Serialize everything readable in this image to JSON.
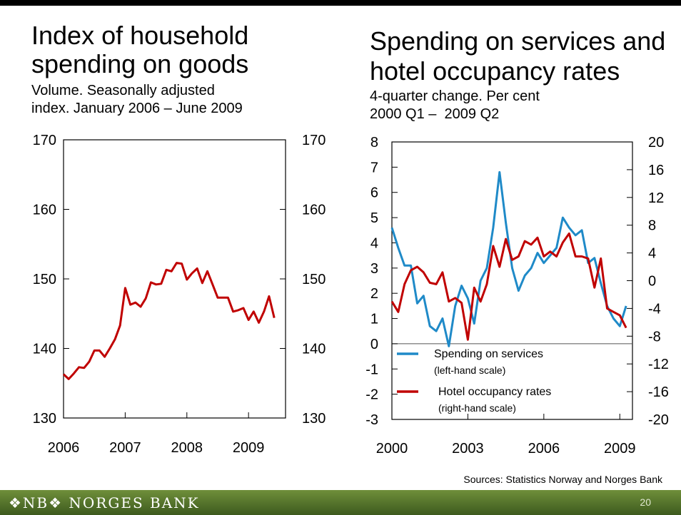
{
  "left": {
    "title_line1": "Index of household",
    "title_line2": "spending on goods",
    "sub_line1": "Volume. Seasonally adjusted",
    "sub_line2": "index. January 2006 – June 2009"
  },
  "right": {
    "title_line1": "Spending on services and",
    "title_line2": "hotel occupancy rates",
    "sub_line1": "4-quarter change. Per cent",
    "sub_line2": "2000 Q1 –  2009 Q2"
  },
  "sources": "Sources: Statistics Norway and Norges Bank",
  "footer": {
    "logo": "❖NB❖ NORGES BANK",
    "page": "20"
  },
  "colors": {
    "red": "#c00000",
    "blue": "#1f8ac8",
    "footer": "#4e6b2a"
  },
  "chart_data": [
    {
      "type": "line",
      "title": "Index of household spending on goods",
      "subtitle": "Volume. Seasonally adjusted index. January 2006 – June 2009",
      "ylim": [
        130,
        170
      ],
      "yticks": [
        130,
        140,
        150,
        160,
        170
      ],
      "xlim": [
        2006,
        2009.6
      ],
      "xticks": [
        "2006",
        "2007",
        "2008",
        "2009"
      ],
      "series": [
        {
          "color": "#c00000",
          "x": [
            2006.0,
            2006.083,
            2006.167,
            2006.25,
            2006.333,
            2006.417,
            2006.5,
            2006.583,
            2006.667,
            2006.75,
            2006.833,
            2006.917,
            2007.0,
            2007.083,
            2007.167,
            2007.25,
            2007.333,
            2007.417,
            2007.5,
            2007.583,
            2007.667,
            2007.75,
            2007.833,
            2007.917,
            2008.0,
            2008.083,
            2008.167,
            2008.25,
            2008.333,
            2008.417,
            2008.5,
            2008.583,
            2008.667,
            2008.75,
            2008.833,
            2008.917,
            2009.0,
            2009.083,
            2009.167,
            2009.25,
            2009.333,
            2009.417
          ],
          "values": [
            136.3,
            135.6,
            136.4,
            137.3,
            137.2,
            138.1,
            139.7,
            139.7,
            138.8,
            140.0,
            141.3,
            143.3,
            148.7,
            146.3,
            146.6,
            146.0,
            147.2,
            149.5,
            149.2,
            149.3,
            151.3,
            151.1,
            152.3,
            152.2,
            149.9,
            150.8,
            151.5,
            149.4,
            151.1,
            149.2,
            147.3,
            147.3,
            147.3,
            145.3,
            145.5,
            145.8,
            144.1,
            145.3,
            143.7,
            145.3,
            147.5,
            144.4
          ]
        }
      ]
    },
    {
      "type": "line",
      "title": "Spending on services and hotel occupancy rates",
      "subtitle": "4-quarter change. Per cent 2000 Q1 – 2009 Q2",
      "ylim_left": [
        -3,
        8
      ],
      "ylim_right": [
        -20,
        20
      ],
      "yticks_left": [
        -3,
        -2,
        -1,
        0,
        1,
        2,
        3,
        4,
        5,
        6,
        7,
        8
      ],
      "yticks_right": [
        -20,
        -16,
        -12,
        -8,
        -4,
        0,
        4,
        8,
        12,
        16,
        20
      ],
      "xlim": [
        2000,
        2009.5
      ],
      "xticks": [
        "2000",
        "2003",
        "2006",
        "2009"
      ],
      "series": [
        {
          "name": "Spending on services",
          "sublabel": "(left-hand scale)",
          "axis": "left",
          "color": "#1f8ac8",
          "x": [
            2000.0,
            2000.25,
            2000.5,
            2000.75,
            2001.0,
            2001.25,
            2001.5,
            2001.75,
            2002.0,
            2002.25,
            2002.5,
            2002.75,
            2003.0,
            2003.25,
            2003.5,
            2003.75,
            2004.0,
            2004.25,
            2004.5,
            2004.75,
            2005.0,
            2005.25,
            2005.5,
            2005.75,
            2006.0,
            2006.25,
            2006.5,
            2006.75,
            2007.0,
            2007.25,
            2007.5,
            2007.75,
            2008.0,
            2008.25,
            2008.5,
            2008.75,
            2009.0,
            2009.25
          ],
          "values": [
            4.6,
            3.8,
            3.1,
            3.1,
            1.6,
            1.9,
            0.7,
            0.5,
            1.0,
            -0.1,
            1.5,
            2.3,
            1.8,
            0.8,
            2.5,
            3.0,
            4.6,
            6.8,
            4.8,
            3.0,
            2.1,
            2.7,
            3.0,
            3.6,
            3.2,
            3.5,
            3.8,
            5.0,
            4.6,
            4.3,
            4.5,
            3.2,
            3.4,
            2.4,
            1.5,
            1.0,
            0.7,
            1.5
          ]
        },
        {
          "name": "Hotel occupancy rates",
          "sublabel": "(right-hand scale)",
          "axis": "right",
          "color": "#c00000",
          "x": [
            2000.0,
            2000.25,
            2000.5,
            2000.75,
            2001.0,
            2001.25,
            2001.5,
            2001.75,
            2002.0,
            2002.25,
            2002.5,
            2002.75,
            2003.0,
            2003.25,
            2003.5,
            2003.75,
            2004.0,
            2004.25,
            2004.5,
            2004.75,
            2005.0,
            2005.25,
            2005.5,
            2005.75,
            2006.0,
            2006.25,
            2006.5,
            2006.75,
            2007.0,
            2007.25,
            2007.5,
            2007.75,
            2008.0,
            2008.25,
            2008.5,
            2008.75,
            2009.0,
            2009.25
          ],
          "values": [
            -3.0,
            -4.5,
            -0.5,
            1.5,
            2.0,
            1.2,
            -0.3,
            -0.5,
            1.2,
            -3.0,
            -2.5,
            -3.2,
            -8.5,
            -1.0,
            -3.0,
            -0.5,
            5.0,
            2.0,
            6.0,
            3.0,
            3.5,
            5.7,
            5.2,
            6.2,
            3.5,
            4.2,
            3.5,
            5.5,
            6.8,
            3.5,
            3.5,
            3.2,
            -1.0,
            3.2,
            -4.0,
            -4.5,
            -5.0,
            -6.8
          ]
        }
      ]
    }
  ]
}
